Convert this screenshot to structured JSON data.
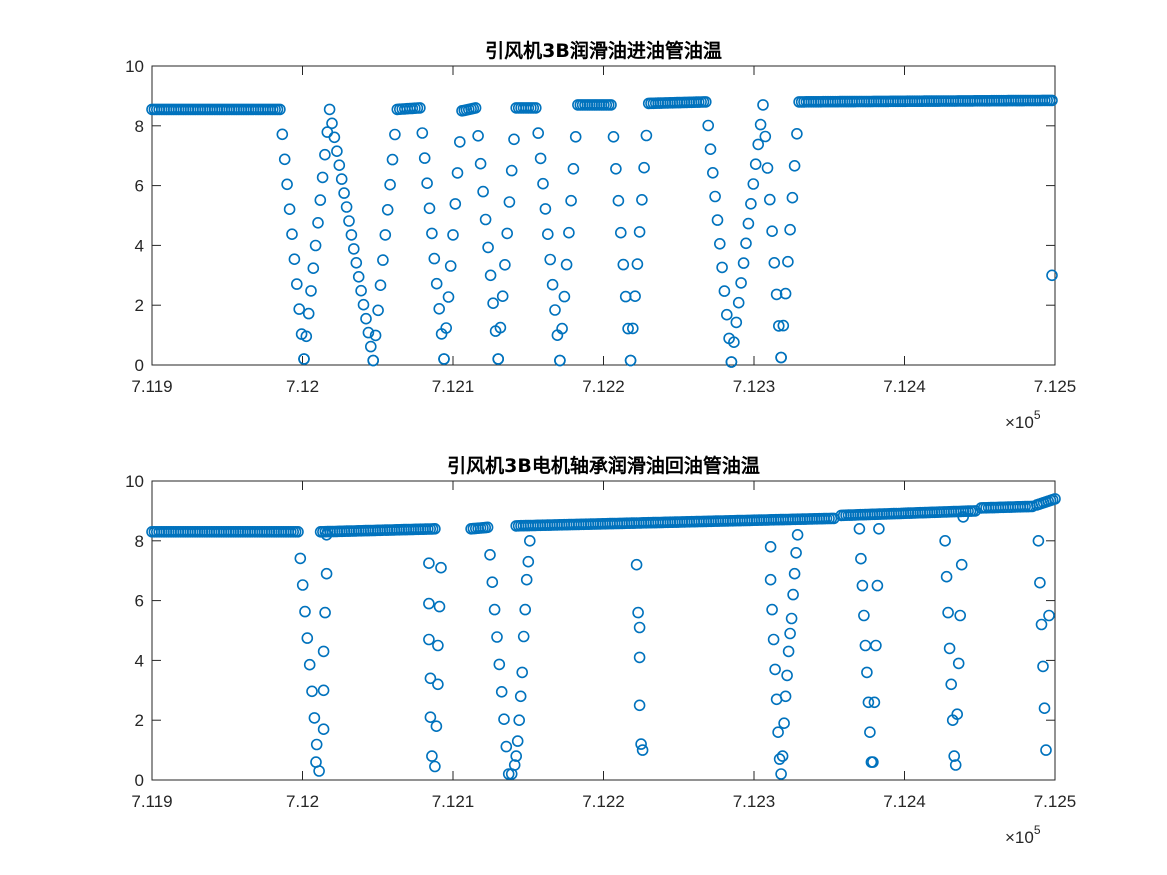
{
  "chart_data": [
    {
      "type": "scatter",
      "title": "引风机3B润滑油进油管油温",
      "xlabel": "",
      "ylabel": "",
      "xlim": [
        711900,
        712500
      ],
      "ylim": [
        0,
        10
      ],
      "xtick_labels": [
        "7.119",
        "7.12",
        "7.121",
        "7.122",
        "7.123",
        "7.124",
        "7.125"
      ],
      "ytick_labels": [
        "0",
        "2",
        "4",
        "6",
        "8",
        "10"
      ],
      "x_exponent_label": "×10",
      "x_exponent_power": "5",
      "marker": "circle",
      "marker_filled": false,
      "color": "#0072BD",
      "grid": false,
      "segments": [
        [
          [
            711900,
            8.55
          ],
          [
            711985,
            8.55
          ],
          [
            712001,
            0.2
          ]
        ],
        [
          [
            712001,
            0.2
          ],
          [
            712018,
            8.55
          ],
          [
            712047,
            0.15
          ]
        ],
        [
          [
            712047,
            0.15
          ],
          [
            712063,
            8.55
          ],
          [
            712078,
            8.6
          ],
          [
            712094,
            0.2
          ]
        ],
        [
          [
            712094,
            0.2
          ],
          [
            712106,
            8.5
          ],
          [
            712115,
            8.6
          ],
          [
            712130,
            0.2
          ]
        ],
        [
          [
            712130,
            0.2
          ],
          [
            712142,
            8.6
          ],
          [
            712155,
            8.6
          ],
          [
            712171,
            0.15
          ]
        ],
        [
          [
            712171,
            0.15
          ],
          [
            712183,
            8.7
          ],
          [
            712205,
            8.7
          ],
          [
            712218,
            0.15
          ]
        ],
        [
          [
            712218,
            0.15
          ],
          [
            712230,
            8.75
          ],
          [
            712268,
            8.8
          ],
          [
            712285,
            0.1
          ]
        ],
        [
          [
            712285,
            0.1
          ],
          [
            712306,
            8.7
          ],
          [
            712318,
            0.25
          ]
        ],
        [
          [
            712318,
            0.25
          ],
          [
            712330,
            8.8
          ],
          [
            712498,
            8.85
          ]
        ]
      ],
      "extra_points": [
        [
          712498,
          3.0
        ]
      ]
    },
    {
      "type": "scatter",
      "title": "引风机3B电机轴承润滑油回油管油温",
      "xlabel": "",
      "ylabel": "",
      "xlim": [
        711900,
        712500
      ],
      "ylim": [
        0,
        10
      ],
      "xtick_labels": [
        "7.119",
        "7.12",
        "7.121",
        "7.122",
        "7.123",
        "7.124",
        "7.125"
      ],
      "ytick_labels": [
        "0",
        "2",
        "4",
        "6",
        "8",
        "10"
      ],
      "x_exponent_label": "×10",
      "x_exponent_power": "5",
      "marker": "circle",
      "marker_filled": false,
      "color": "#0072BD",
      "grid": false,
      "segments": [
        [
          [
            711900,
            8.3
          ],
          [
            711997,
            8.3
          ],
          [
            712011,
            0.3
          ]
        ],
        [
          [
            712012,
            8.3
          ],
          [
            712088,
            8.4
          ]
        ],
        [
          [
            712112,
            8.4
          ],
          [
            712123,
            8.45
          ],
          [
            712137,
            0.2
          ]
        ],
        [
          [
            712142,
            8.5
          ],
          [
            712353,
            8.75
          ]
        ],
        [
          [
            712358,
            8.85
          ],
          [
            712447,
            9.0
          ]
        ],
        [
          [
            712451,
            9.1
          ],
          [
            712485,
            9.15
          ]
        ],
        [
          [
            712488,
            9.2
          ],
          [
            712500,
            9.4
          ]
        ]
      ],
      "extra_points": [
        [
          712009,
          0.6
        ],
        [
          712014,
          1.7
        ],
        [
          712014,
          3.0
        ],
        [
          712014,
          4.3
        ],
        [
          712015,
          5.6
        ],
        [
          712016,
          6.9
        ],
        [
          712016,
          8.2
        ],
        [
          712084,
          7.25
        ],
        [
          712084,
          5.9
        ],
        [
          712084,
          4.7
        ],
        [
          712085,
          3.4
        ],
        [
          712085,
          2.1
        ],
        [
          712086,
          0.8
        ],
        [
          712088,
          0.45
        ],
        [
          712089,
          1.8
        ],
        [
          712090,
          3.2
        ],
        [
          712090,
          4.5
        ],
        [
          712091,
          5.8
        ],
        [
          712092,
          7.1
        ],
        [
          712139,
          0.2
        ],
        [
          712141,
          0.5
        ],
        [
          712142,
          0.8
        ],
        [
          712143,
          1.3
        ],
        [
          712144,
          2.0
        ],
        [
          712145,
          2.8
        ],
        [
          712146,
          3.6
        ],
        [
          712147,
          4.8
        ],
        [
          712148,
          5.7
        ],
        [
          712149,
          6.7
        ],
        [
          712150,
          7.3
        ],
        [
          712151,
          8.0
        ],
        [
          712222,
          7.2
        ],
        [
          712223,
          5.6
        ],
        [
          712224,
          5.1
        ],
        [
          712224,
          4.1
        ],
        [
          712224,
          2.5
        ],
        [
          712225,
          1.2
        ],
        [
          712226,
          1.0
        ],
        [
          712311,
          7.8
        ],
        [
          712311,
          6.7
        ],
        [
          712312,
          5.7
        ],
        [
          712313,
          4.7
        ],
        [
          712314,
          3.7
        ],
        [
          712315,
          2.7
        ],
        [
          712316,
          1.6
        ],
        [
          712317,
          0.7
        ],
        [
          712318,
          0.2
        ],
        [
          712319,
          0.8
        ],
        [
          712320,
          1.9
        ],
        [
          712321,
          2.8
        ],
        [
          712322,
          3.5
        ],
        [
          712323,
          4.3
        ],
        [
          712324,
          4.9
        ],
        [
          712325,
          5.4
        ],
        [
          712326,
          6.2
        ],
        [
          712327,
          6.9
        ],
        [
          712328,
          7.6
        ],
        [
          712329,
          8.2
        ],
        [
          712370,
          8.4
        ],
        [
          712371,
          7.4
        ],
        [
          712372,
          6.5
        ],
        [
          712373,
          5.5
        ],
        [
          712374,
          4.5
        ],
        [
          712375,
          3.6
        ],
        [
          712376,
          2.6
        ],
        [
          712377,
          1.6
        ],
        [
          712378,
          0.6
        ],
        [
          712379,
          0.6
        ],
        [
          712380,
          2.6
        ],
        [
          712381,
          4.5
        ],
        [
          712382,
          6.5
        ],
        [
          712383,
          8.4
        ],
        [
          712427,
          8.0
        ],
        [
          712428,
          6.8
        ],
        [
          712429,
          5.6
        ],
        [
          712430,
          4.4
        ],
        [
          712431,
          3.2
        ],
        [
          712432,
          2.0
        ],
        [
          712433,
          0.8
        ],
        [
          712434,
          0.5
        ],
        [
          712435,
          2.2
        ],
        [
          712436,
          3.9
        ],
        [
          712437,
          5.5
        ],
        [
          712438,
          7.2
        ],
        [
          712439,
          8.8
        ],
        [
          712489,
          8.0
        ],
        [
          712490,
          6.6
        ],
        [
          712491,
          5.2
        ],
        [
          712492,
          3.8
        ],
        [
          712493,
          2.4
        ],
        [
          712494,
          1.0
        ],
        [
          712496,
          5.5
        ]
      ]
    }
  ]
}
